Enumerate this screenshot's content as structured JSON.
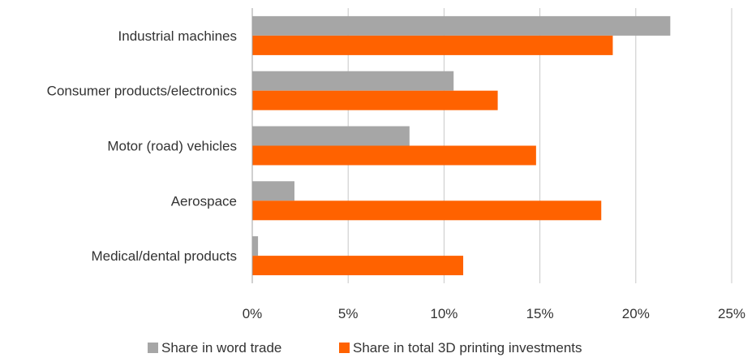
{
  "chart_data": {
    "type": "bar",
    "orientation": "horizontal",
    "title": "",
    "xlabel": "",
    "ylabel": "",
    "categories": [
      "Industrial machines",
      "Consumer products/electronics",
      "Motor (road) vehicles",
      "Aerospace",
      "Medical/dental products"
    ],
    "series": [
      {
        "name": "Share in word trade",
        "color": "#a6a6a6",
        "values": [
          0.218,
          0.105,
          0.082,
          0.022,
          0.003
        ]
      },
      {
        "name": "Share in total 3D printing investments",
        "color": "#ff6200",
        "values": [
          0.188,
          0.128,
          0.148,
          0.182,
          0.11
        ]
      }
    ],
    "xlim": [
      0,
      0.25
    ],
    "xticks": [
      0,
      0.05,
      0.1,
      0.15,
      0.2,
      0.25
    ],
    "xtick_labels": [
      "0%",
      "5%",
      "10%",
      "15%",
      "20%",
      "25%"
    ],
    "grid": true,
    "legend_position": "bottom"
  }
}
